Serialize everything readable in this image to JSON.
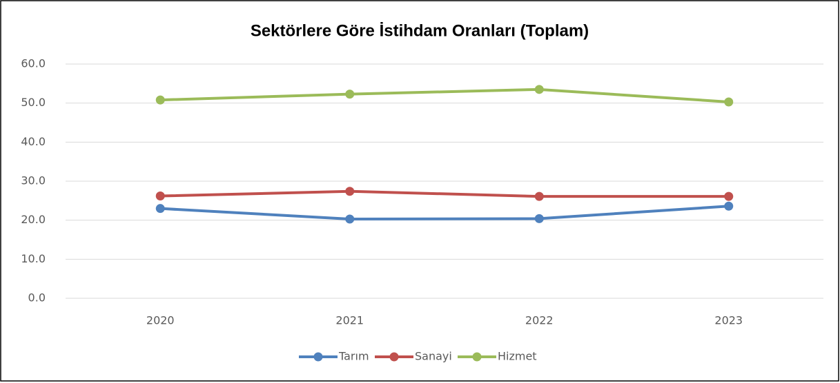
{
  "chart_data": {
    "type": "line",
    "title": "Sektörlere Göre İstihdam Oranları (Toplam)",
    "categories": [
      "2020",
      "2021",
      "2022",
      "2023"
    ],
    "series": [
      {
        "name": "Tarım",
        "color": "#4f81bd",
        "values": [
          23.0,
          20.3,
          20.4,
          23.6
        ]
      },
      {
        "name": "Sanayi",
        "color": "#c0504d",
        "values": [
          26.2,
          27.4,
          26.1,
          26.1
        ]
      },
      {
        "name": "Hizmet",
        "color": "#9bbb59",
        "values": [
          50.8,
          52.3,
          53.5,
          50.3
        ]
      }
    ],
    "ylim": [
      0,
      60
    ],
    "yticks": [
      {
        "value": 0,
        "label": "0.0"
      },
      {
        "value": 10,
        "label": "10.0"
      },
      {
        "value": 20,
        "label": "20.0"
      },
      {
        "value": 30,
        "label": "30.0"
      },
      {
        "value": 40,
        "label": "40.0"
      },
      {
        "value": 50,
        "label": "50.0"
      },
      {
        "value": 60,
        "label": "60.0"
      }
    ],
    "grid": true,
    "legend": "bottom"
  }
}
